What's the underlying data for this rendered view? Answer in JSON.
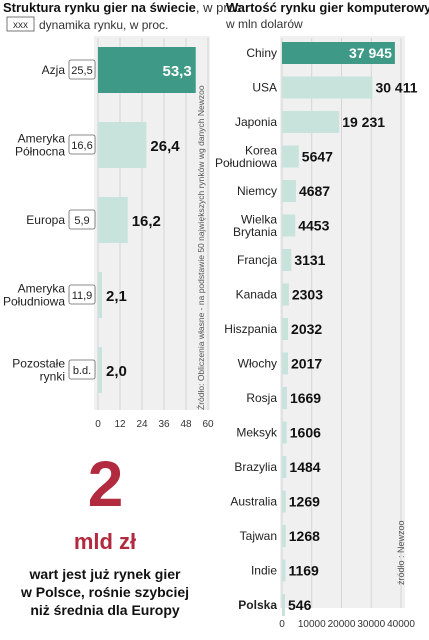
{
  "chart_data": [
    {
      "type": "bar",
      "title": "Struktura rynku gier na świecie",
      "title_unit": ", w proc.",
      "legend_box": "xxx",
      "legend_text": "dynamika rynku, w proc.",
      "source": "Źródło: Obliczenia własne - na podstawie 50 największych rynków wg danych Newzoo",
      "categories": [
        [
          "Azja"
        ],
        [
          "Ameryka",
          "Północna"
        ],
        [
          "Europa"
        ],
        [
          "Ameryka",
          "Południowa"
        ],
        [
          "Pozostałe",
          "rynki"
        ]
      ],
      "values": [
        53.3,
        26.4,
        16.2,
        2.1,
        2.0
      ],
      "value_labels": [
        "53,3",
        "26,4",
        "16,2",
        "2,1",
        "2,0"
      ],
      "dynamics": [
        "25,5",
        "16,6",
        "5,9",
        "11,9",
        "b.d."
      ],
      "xlim": [
        0,
        60
      ],
      "xticks": [
        0,
        12,
        24,
        36,
        48,
        60
      ],
      "grid": true,
      "highlight_color": "#3e9a86",
      "bar_color": "#c8e3dc"
    },
    {
      "type": "bar",
      "title": "Wartość rynku gier komputerowych",
      "subtitle": "w mln dolarów",
      "source": "źródło : Newzoo",
      "categories": [
        [
          "Chiny"
        ],
        [
          "USA"
        ],
        [
          "Japonia"
        ],
        [
          "Korea",
          "Południowa"
        ],
        [
          "Niemcy"
        ],
        [
          "Wielka",
          "Brytania"
        ],
        [
          "Francja"
        ],
        [
          "Kanada"
        ],
        [
          "Hiszpania"
        ],
        [
          "Włochy"
        ],
        [
          "Rosja"
        ],
        [
          "Meksyk"
        ],
        [
          "Brazylia"
        ],
        [
          "Australia"
        ],
        [
          "Tajwan"
        ],
        [
          "Indie"
        ],
        [
          "Polska"
        ]
      ],
      "values": [
        37945,
        30411,
        19231,
        5647,
        4687,
        4453,
        3131,
        2303,
        2032,
        2017,
        1669,
        1606,
        1484,
        1269,
        1268,
        1169,
        546
      ],
      "value_labels": [
        "37 945",
        "30 411",
        "19 231",
        "5647",
        "4687",
        "4453",
        "3131",
        "2303",
        "2032",
        "2017",
        "1669",
        "1606",
        "1484",
        "1269",
        "1268",
        "1169",
        "546"
      ],
      "xlim": [
        0,
        40000
      ],
      "xticks": [
        0,
        10000,
        20000,
        30000,
        40000
      ],
      "grid": true,
      "highlight_color": "#3e9a86",
      "bar_color": "#c8e3dc"
    }
  ],
  "highlight": {
    "value": "2",
    "unit": "mld zł",
    "description": [
      "wart jest już rynek gier",
      "w Polsce, rośnie szybciej",
      "niż średnia dla Europy"
    ]
  }
}
